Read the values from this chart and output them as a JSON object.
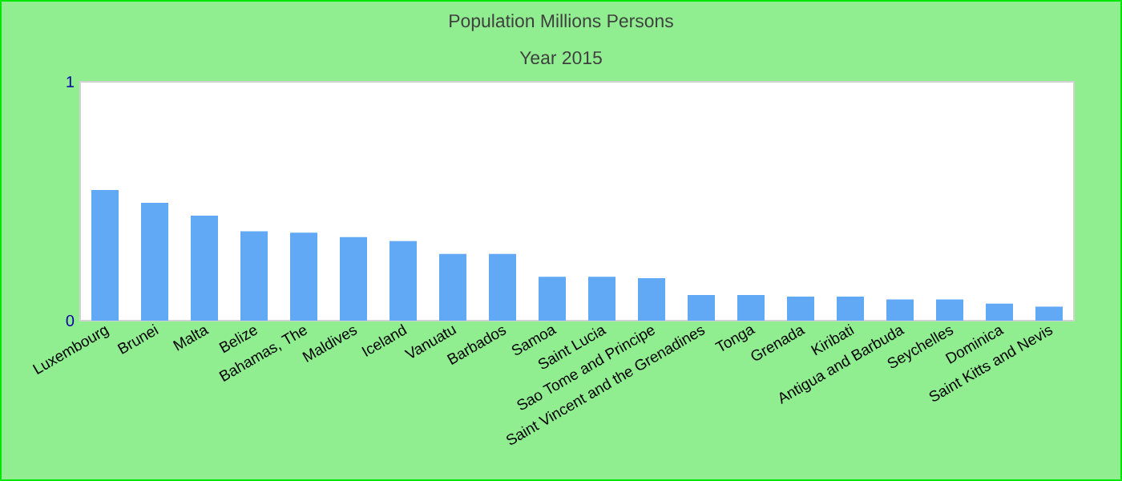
{
  "chart_data": {
    "type": "bar",
    "title": "Population Millions Persons",
    "subtitle": "Year 2015",
    "categories": [
      "Luxembourg",
      "Brunei",
      "Malta",
      "Belize",
      "Bahamas, The",
      "Maldives",
      "Iceland",
      "Vanuatu",
      "Barbados",
      "Samoa",
      "Saint Lucia",
      "Sao Tome and Principe",
      "Saint Vincent and the Grenadines",
      "Tonga",
      "Grenada",
      "Kiribati",
      "Antigua and Barbuda",
      "Seychelles",
      "Dominica",
      "Saint Kitts and Nevis"
    ],
    "values": [
      0.547,
      0.493,
      0.44,
      0.374,
      0.368,
      0.35,
      0.333,
      0.279,
      0.279,
      0.184,
      0.184,
      0.178,
      0.107,
      0.107,
      0.101,
      0.101,
      0.089,
      0.089,
      0.071,
      0.059
    ],
    "color": "#61a8f5",
    "ylim": [
      0,
      1
    ],
    "yticks": [
      0,
      1
    ]
  }
}
